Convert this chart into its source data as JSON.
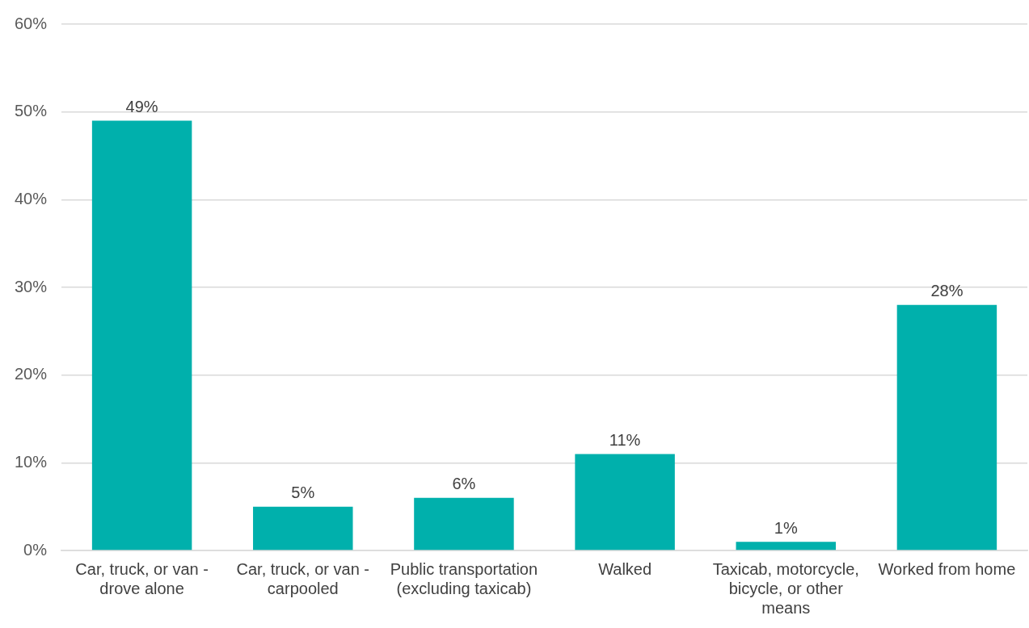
{
  "chart_data": {
    "type": "bar",
    "categories": [
      "Car, truck, or van - drove alone",
      "Car, truck, or van - carpooled",
      "Public transportation (excluding taxicab)",
      "Walked",
      "Taxicab, motorcycle, bicycle, or other means",
      "Worked from home"
    ],
    "values": [
      49,
      5,
      6,
      11,
      1,
      28
    ],
    "color": "#00b0ac",
    "value_labels": [
      "49%",
      "5%",
      "6%",
      "11%",
      "1%",
      "28%"
    ],
    "ylim": [
      0,
      60
    ],
    "yticks": [
      {
        "value": 0,
        "label": "0%"
      },
      {
        "value": 10,
        "label": "10%"
      },
      {
        "value": 20,
        "label": "20%"
      },
      {
        "value": 30,
        "label": "30%"
      },
      {
        "value": 40,
        "label": "40%"
      },
      {
        "value": 50,
        "label": "50%"
      },
      {
        "value": 60,
        "label": "60%"
      }
    ],
    "grid": "y",
    "legend": false
  }
}
